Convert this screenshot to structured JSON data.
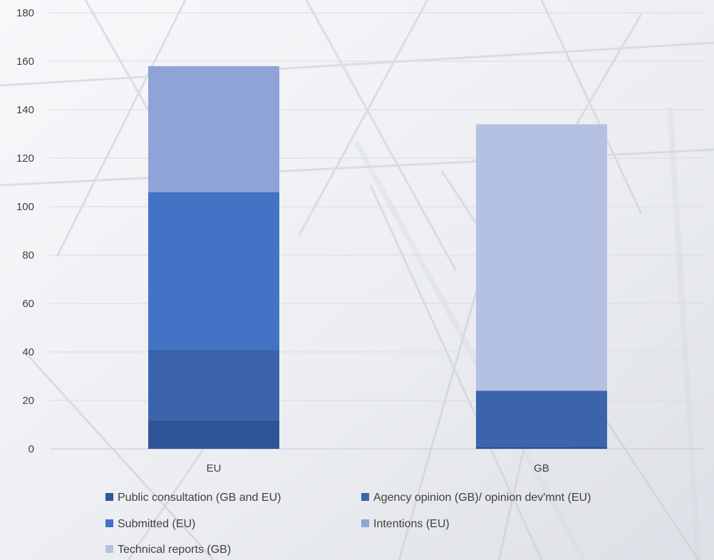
{
  "chart_data": {
    "type": "bar",
    "stacked": true,
    "categories": [
      "EU",
      "GB"
    ],
    "series": [
      {
        "name": "Public consultation (GB and EU)",
        "values": [
          12,
          1
        ],
        "color": "#2f5597"
      },
      {
        "name": "Agency opinion (GB)/ opinion dev'mnt (EU)",
        "values": [
          29,
          23
        ],
        "color": "#3b64ad"
      },
      {
        "name": "Submitted (EU)",
        "values": [
          65,
          0
        ],
        "color": "#4472c4"
      },
      {
        "name": "Intentions (EU)",
        "values": [
          52,
          0
        ],
        "color": "#8fa3d6"
      },
      {
        "name": "Technical reports (GB)",
        "values": [
          0,
          110
        ],
        "color": "#b4c1e2"
      }
    ],
    "ylim": [
      0,
      180
    ],
    "yticks": [
      0,
      20,
      40,
      60,
      80,
      100,
      120,
      140,
      160,
      180
    ],
    "grid": true,
    "legend_position": "bottom",
    "title": "",
    "xlabel": "",
    "ylabel": ""
  }
}
